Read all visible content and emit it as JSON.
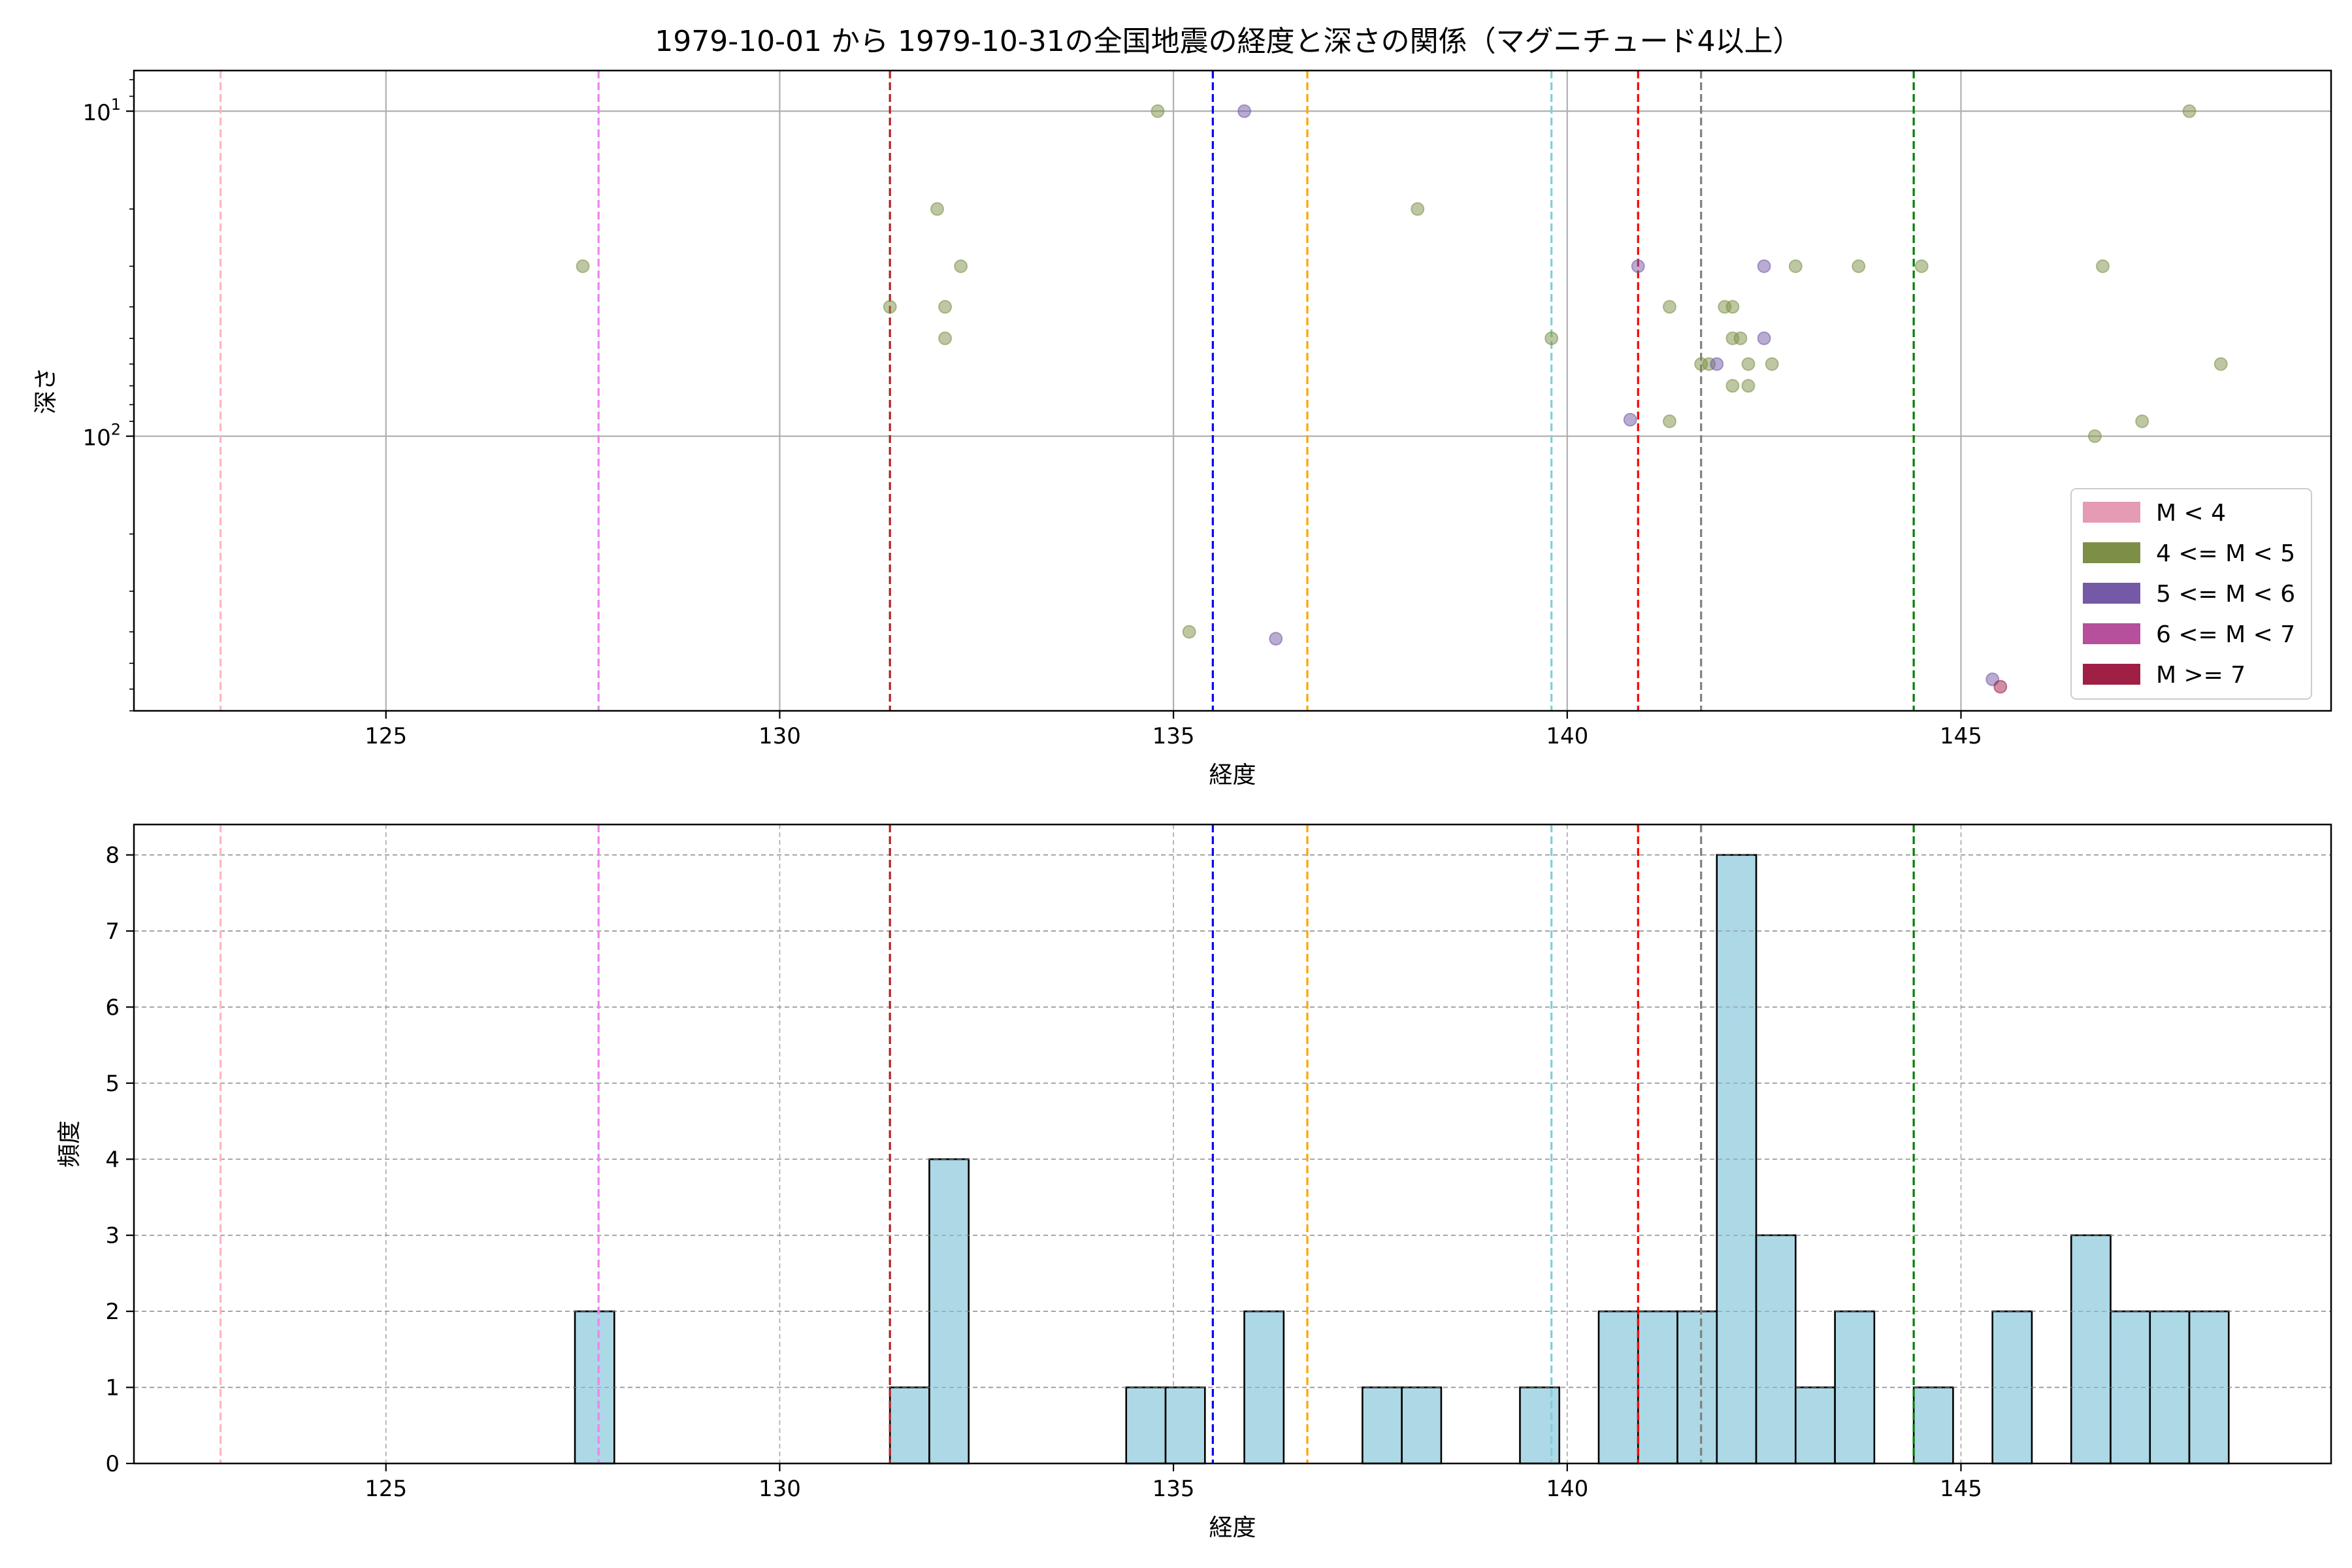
{
  "title": "1979-10-01 から 1979-10-31の全国地震の経度と深さの関係（マグニチュード4以上）",
  "chart_data": [
    {
      "type": "scatter",
      "xlabel": "経度",
      "ylabel": "深さ",
      "xlim": [
        121.8,
        149.7
      ],
      "ylim": [
        700,
        7.5
      ],
      "yscale": "log",
      "y_inverted": true,
      "grid": true,
      "xticks": [
        125,
        130,
        135,
        140,
        145
      ],
      "xtick_labels": [
        "125",
        "130",
        "135",
        "140",
        "145"
      ],
      "yticks": [
        10,
        100
      ],
      "ytick_labels": [
        {
          "base": "10",
          "exp": "1"
        },
        {
          "base": "10",
          "exp": "2"
        }
      ],
      "legend_position": "lower-right",
      "legend": [
        {
          "label": "M < 4",
          "color": "#e59bb4"
        },
        {
          "label": "4 <= M < 5",
          "color": "#7d8f47"
        },
        {
          "label": "5 <= M < 6",
          "color": "#7459a6"
        },
        {
          "label": "6 <= M < 7",
          "color": "#b64f9c"
        },
        {
          "label": "M >= 7",
          "color": "#a01f45"
        }
      ],
      "vlines": [
        {
          "x": 122.9,
          "color": "#ffb6c1"
        },
        {
          "x": 127.7,
          "color": "#ee82ee"
        },
        {
          "x": 131.4,
          "color": "#b22222"
        },
        {
          "x": 135.5,
          "color": "#0000ff"
        },
        {
          "x": 136.7,
          "color": "#ffa500"
        },
        {
          "x": 139.8,
          "color": "#7fd0d8"
        },
        {
          "x": 140.9,
          "color": "#ff0000"
        },
        {
          "x": 141.7,
          "color": "#808080"
        },
        {
          "x": 144.4,
          "color": "#008000"
        }
      ],
      "series": [
        {
          "magnitude_class": "4 <= M < 5",
          "color": "#7d8f47",
          "points": [
            {
              "x": 127.5,
              "y": 30
            },
            {
              "x": 131.4,
              "y": 40
            },
            {
              "x": 132.0,
              "y": 20
            },
            {
              "x": 132.1,
              "y": 40
            },
            {
              "x": 132.1,
              "y": 50
            },
            {
              "x": 132.3,
              "y": 30
            },
            {
              "x": 134.8,
              "y": 10
            },
            {
              "x": 135.2,
              "y": 400
            },
            {
              "x": 138.1,
              "y": 20
            },
            {
              "x": 139.8,
              "y": 50
            },
            {
              "x": 141.3,
              "y": 40
            },
            {
              "x": 141.3,
              "y": 90
            },
            {
              "x": 141.8,
              "y": 60
            },
            {
              "x": 142.0,
              "y": 40
            },
            {
              "x": 142.1,
              "y": 40
            },
            {
              "x": 142.1,
              "y": 50
            },
            {
              "x": 142.2,
              "y": 50
            },
            {
              "x": 142.1,
              "y": 70
            },
            {
              "x": 142.3,
              "y": 60
            },
            {
              "x": 142.3,
              "y": 70
            },
            {
              "x": 142.6,
              "y": 60
            },
            {
              "x": 142.9,
              "y": 30
            },
            {
              "x": 143.7,
              "y": 30
            },
            {
              "x": 144.5,
              "y": 30
            },
            {
              "x": 146.7,
              "y": 100
            },
            {
              "x": 146.8,
              "y": 30
            },
            {
              "x": 147.3,
              "y": 90
            },
            {
              "x": 147.9,
              "y": 10
            },
            {
              "x": 148.3,
              "y": 60
            },
            {
              "x": 141.7,
              "y": 60
            }
          ]
        },
        {
          "magnitude_class": "5 <= M < 6",
          "color": "#7459a6",
          "points": [
            {
              "x": 135.9,
              "y": 10
            },
            {
              "x": 136.3,
              "y": 420
            },
            {
              "x": 140.8,
              "y": 89
            },
            {
              "x": 140.9,
              "y": 30
            },
            {
              "x": 141.9,
              "y": 60
            },
            {
              "x": 142.5,
              "y": 30
            },
            {
              "x": 142.5,
              "y": 50
            },
            {
              "x": 145.4,
              "y": 560
            }
          ]
        },
        {
          "magnitude_class": "M >= 7",
          "color": "#a01f45",
          "points": [
            {
              "x": 145.5,
              "y": 590
            }
          ]
        }
      ]
    },
    {
      "type": "bar",
      "xlabel": "経度",
      "ylabel": "頻度",
      "xlim": [
        121.8,
        149.7
      ],
      "ylim": [
        0,
        8.4
      ],
      "grid": true,
      "xticks": [
        125,
        130,
        135,
        140,
        145
      ],
      "xtick_labels": [
        "125",
        "130",
        "135",
        "140",
        "145"
      ],
      "yticks": [
        0,
        1,
        2,
        3,
        4,
        5,
        6,
        7,
        8
      ],
      "ytick_labels": [
        "0",
        "1",
        "2",
        "3",
        "4",
        "5",
        "6",
        "7",
        "8"
      ],
      "bar_color": "#add8e6",
      "bin_width": 0.5,
      "bins": [
        {
          "x0": 127.4,
          "count": 2
        },
        {
          "x0": 131.4,
          "count": 1
        },
        {
          "x0": 131.9,
          "count": 4
        },
        {
          "x0": 134.4,
          "count": 1
        },
        {
          "x0": 134.9,
          "count": 1
        },
        {
          "x0": 135.9,
          "count": 2
        },
        {
          "x0": 137.4,
          "count": 1
        },
        {
          "x0": 137.9,
          "count": 1
        },
        {
          "x0": 139.4,
          "count": 1
        },
        {
          "x0": 140.4,
          "count": 2
        },
        {
          "x0": 140.9,
          "count": 2
        },
        {
          "x0": 141.4,
          "count": 2
        },
        {
          "x0": 141.9,
          "count": 8
        },
        {
          "x0": 142.4,
          "count": 3
        },
        {
          "x0": 142.9,
          "count": 1
        },
        {
          "x0": 143.4,
          "count": 2
        },
        {
          "x0": 144.4,
          "count": 1
        },
        {
          "x0": 145.4,
          "count": 2
        },
        {
          "x0": 146.4,
          "count": 3
        },
        {
          "x0": 146.9,
          "count": 2
        },
        {
          "x0": 147.4,
          "count": 2
        },
        {
          "x0": 147.9,
          "count": 2
        }
      ],
      "vlines": [
        {
          "x": 122.9,
          "color": "#ffb6c1"
        },
        {
          "x": 127.7,
          "color": "#ee82ee"
        },
        {
          "x": 131.4,
          "color": "#b22222"
        },
        {
          "x": 135.5,
          "color": "#0000ff"
        },
        {
          "x": 136.7,
          "color": "#ffa500"
        },
        {
          "x": 139.8,
          "color": "#7fd0d8"
        },
        {
          "x": 140.9,
          "color": "#ff0000"
        },
        {
          "x": 141.7,
          "color": "#808080"
        },
        {
          "x": 144.4,
          "color": "#008000"
        }
      ]
    }
  ]
}
